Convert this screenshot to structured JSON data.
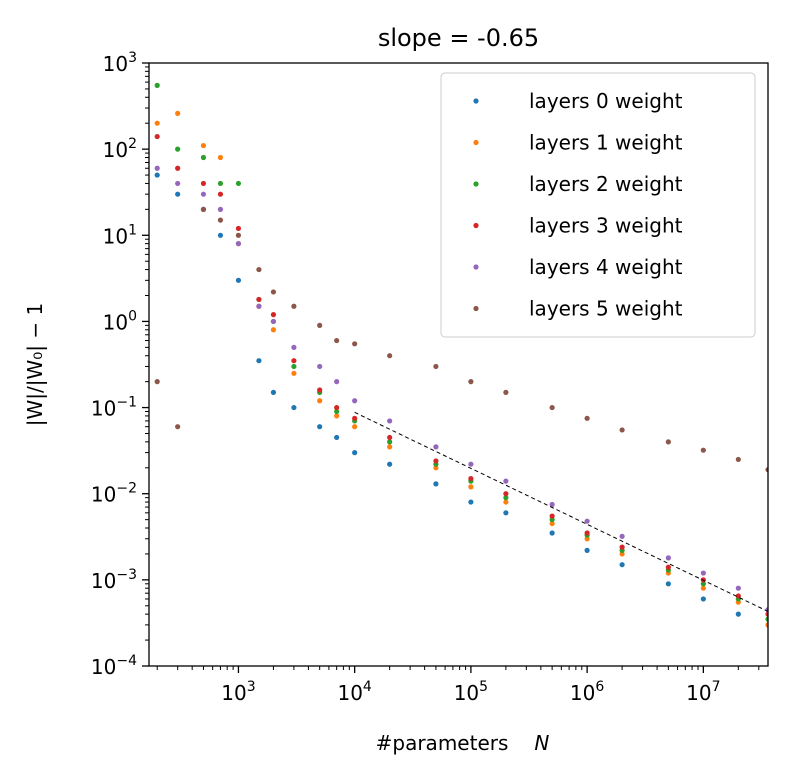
{
  "chart_data": {
    "type": "scatter",
    "title": "slope = -0.65",
    "xlabel": "#parameters",
    "xlabel_symbol": "N",
    "ylabel": "|W|/|W₀| − 1",
    "x_scale": "log",
    "y_scale": "log",
    "xlim": [
      170,
      36000000
    ],
    "ylim": [
      0.0001,
      1000
    ],
    "x_ticks": [
      {
        "value": 1000,
        "base": "10",
        "exp": "3"
      },
      {
        "value": 10000,
        "base": "10",
        "exp": "4"
      },
      {
        "value": 100000,
        "base": "10",
        "exp": "5"
      },
      {
        "value": 1000000,
        "base": "10",
        "exp": "6"
      },
      {
        "value": 10000000,
        "base": "10",
        "exp": "7"
      }
    ],
    "y_ticks": [
      {
        "value": 0.0001,
        "base": "10",
        "exp": "−4"
      },
      {
        "value": 0.001,
        "base": "10",
        "exp": "−3"
      },
      {
        "value": 0.01,
        "base": "10",
        "exp": "−2"
      },
      {
        "value": 0.1,
        "base": "10",
        "exp": "−1"
      },
      {
        "value": 1,
        "base": "10",
        "exp": "0"
      },
      {
        "value": 10,
        "base": "10",
        "exp": "1"
      },
      {
        "value": 100,
        "base": "10",
        "exp": "2"
      },
      {
        "value": 1000,
        "base": "10",
        "exp": "3"
      }
    ],
    "legend_position": "top-right",
    "grid": false,
    "fit_line": {
      "style": "dashed",
      "color": "#000000",
      "x": [
        10000,
        36000000
      ],
      "y": [
        0.088,
        0.00043
      ]
    },
    "series": [
      {
        "name": "layers 0 weight",
        "color": "#1f77b4",
        "x": [
          200,
          300,
          500,
          700,
          1000,
          1500,
          2000,
          3000,
          5000,
          7000,
          10000,
          20000,
          50000,
          100000,
          200000,
          500000,
          1000000,
          2000000,
          5000000,
          10000000,
          20000000,
          36000000
        ],
        "y": [
          50,
          30,
          20,
          10,
          3,
          0.35,
          0.15,
          0.1,
          0.06,
          0.045,
          0.03,
          0.022,
          0.013,
          0.008,
          0.006,
          0.0035,
          0.0022,
          0.0015,
          0.0009,
          0.0006,
          0.0004,
          0.0003
        ]
      },
      {
        "name": "layers 1 weight",
        "color": "#ff7f0e",
        "x": [
          200,
          300,
          500,
          700,
          1000,
          1500,
          2000,
          3000,
          5000,
          7000,
          10000,
          20000,
          50000,
          100000,
          200000,
          500000,
          1000000,
          2000000,
          5000000,
          10000000,
          20000000,
          36000000
        ],
        "y": [
          200,
          260,
          110,
          80,
          8,
          1.5,
          0.8,
          0.25,
          0.12,
          0.08,
          0.06,
          0.035,
          0.02,
          0.012,
          0.008,
          0.0045,
          0.003,
          0.002,
          0.0012,
          0.0008,
          0.00055,
          0.0003
        ]
      },
      {
        "name": "layers 2 weight",
        "color": "#2ca02c",
        "x": [
          200,
          300,
          500,
          700,
          1000,
          1500,
          2000,
          3000,
          5000,
          7000,
          10000,
          20000,
          50000,
          100000,
          200000,
          500000,
          1000000,
          2000000,
          5000000,
          10000000,
          20000000,
          36000000
        ],
        "y": [
          550,
          100,
          80,
          40,
          40,
          1.8,
          1,
          0.3,
          0.15,
          0.09,
          0.07,
          0.04,
          0.022,
          0.014,
          0.009,
          0.005,
          0.0033,
          0.0022,
          0.0013,
          0.0009,
          0.0006,
          0.00035
        ]
      },
      {
        "name": "layers 3 weight",
        "color": "#d62728",
        "x": [
          200,
          300,
          500,
          700,
          1000,
          1500,
          2000,
          3000,
          5000,
          7000,
          10000,
          20000,
          50000,
          100000,
          200000,
          500000,
          1000000,
          2000000,
          5000000,
          10000000,
          20000000,
          36000000
        ],
        "y": [
          140,
          60,
          40,
          30,
          12,
          1.8,
          1.2,
          0.35,
          0.16,
          0.1,
          0.075,
          0.045,
          0.024,
          0.015,
          0.01,
          0.0055,
          0.0035,
          0.0024,
          0.0014,
          0.001,
          0.00065,
          0.0004
        ]
      },
      {
        "name": "layers 4 weight",
        "color": "#9467bd",
        "x": [
          200,
          300,
          500,
          700,
          1000,
          1500,
          2000,
          3000,
          5000,
          7000,
          10000,
          20000,
          50000,
          100000,
          200000,
          500000,
          1000000,
          2000000,
          5000000,
          10000000,
          20000000,
          36000000
        ],
        "y": [
          60,
          40,
          30,
          20,
          8,
          1.5,
          1,
          0.5,
          0.3,
          0.2,
          0.12,
          0.07,
          0.035,
          0.022,
          0.014,
          0.0075,
          0.0048,
          0.0032,
          0.0018,
          0.0012,
          0.0008,
          0.00045
        ]
      },
      {
        "name": "layers 5 weight",
        "color": "#8c564b",
        "x": [
          200,
          300,
          500,
          700,
          1000,
          1500,
          2000,
          3000,
          5000,
          7000,
          10000,
          20000,
          50000,
          100000,
          200000,
          500000,
          1000000,
          2000000,
          5000000,
          10000000,
          20000000,
          36000000
        ],
        "y": [
          0.2,
          0.06,
          20,
          15,
          10,
          4,
          2.2,
          1.5,
          0.9,
          0.6,
          0.55,
          0.4,
          0.3,
          0.2,
          0.15,
          0.1,
          0.075,
          0.055,
          0.04,
          0.032,
          0.025,
          0.019
        ]
      }
    ]
  }
}
